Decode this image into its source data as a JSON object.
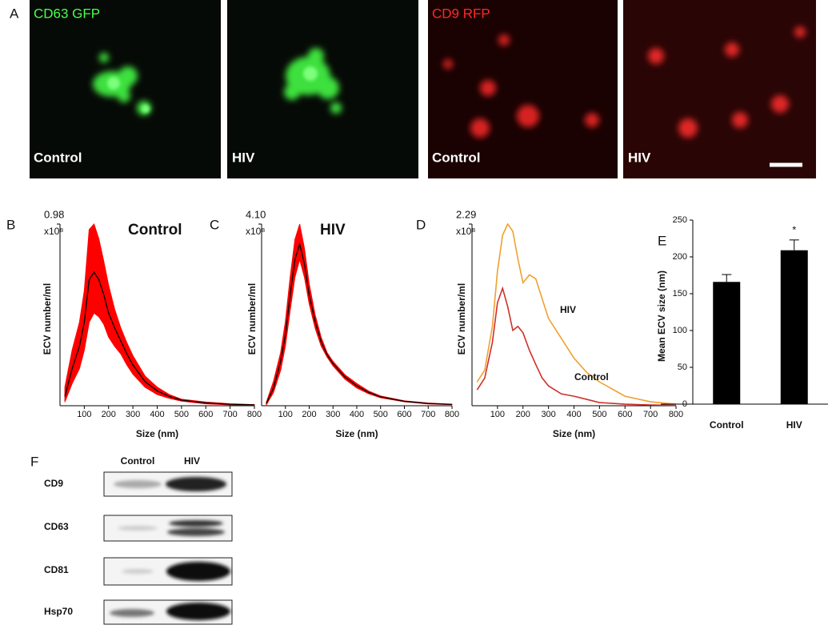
{
  "panel_a": {
    "letter": "A",
    "images": [
      {
        "marker": "CD63 GFP",
        "condition": "Control"
      },
      {
        "condition": "HIV"
      },
      {
        "marker": "CD9 RFP",
        "condition": "Control"
      },
      {
        "condition": "HIV"
      }
    ]
  },
  "chart_data": [
    {
      "type": "line",
      "letter": "B",
      "title": "Control",
      "xlabel": "Size (nm)",
      "ylabel": "ECV number/ml",
      "y_unit": "x10⁸",
      "x": [
        20,
        50,
        80,
        100,
        120,
        140,
        160,
        180,
        200,
        225,
        250,
        275,
        300,
        350,
        400,
        450,
        500,
        600,
        700,
        800
      ],
      "values": [
        0.05,
        0.2,
        0.32,
        0.45,
        0.68,
        0.72,
        0.68,
        0.6,
        0.5,
        0.42,
        0.35,
        0.28,
        0.22,
        0.13,
        0.08,
        0.05,
        0.03,
        0.015,
        0.008,
        0.005
      ],
      "upper": [
        0.1,
        0.3,
        0.45,
        0.62,
        0.95,
        0.98,
        0.9,
        0.78,
        0.65,
        0.52,
        0.42,
        0.34,
        0.27,
        0.16,
        0.1,
        0.06,
        0.035,
        0.02,
        0.01,
        0.006
      ],
      "lower": [
        0.02,
        0.12,
        0.2,
        0.3,
        0.45,
        0.5,
        0.48,
        0.44,
        0.37,
        0.32,
        0.28,
        0.22,
        0.17,
        0.1,
        0.06,
        0.04,
        0.025,
        0.01,
        0.005,
        0.003
      ],
      "color": "#000000",
      "band_color": "#ff0000",
      "xlim": [
        0,
        800
      ],
      "xticks": [
        100,
        200,
        300,
        400,
        500,
        600,
        700,
        800
      ],
      "ylim": [
        0,
        0.98
      ],
      "yticks": [
        0.98
      ]
    },
    {
      "type": "line",
      "letter": "C",
      "title": "HIV",
      "xlabel": "Size (nm)",
      "ylabel": "ECV number/ml",
      "y_unit": "x10⁸",
      "x": [
        20,
        50,
        80,
        100,
        120,
        140,
        160,
        180,
        200,
        225,
        250,
        275,
        300,
        350,
        400,
        450,
        500,
        600,
        700,
        800
      ],
      "values": [
        0.05,
        0.4,
        1.0,
        1.6,
        2.5,
        3.3,
        3.65,
        3.2,
        2.5,
        1.9,
        1.45,
        1.15,
        0.95,
        0.65,
        0.45,
        0.3,
        0.2,
        0.1,
        0.05,
        0.03
      ],
      "upper": [
        0.08,
        0.55,
        1.2,
        1.9,
        2.9,
        3.75,
        4.1,
        3.55,
        2.75,
        2.05,
        1.55,
        1.2,
        1.0,
        0.7,
        0.5,
        0.33,
        0.22,
        0.11,
        0.06,
        0.035
      ],
      "lower": [
        0.02,
        0.3,
        0.8,
        1.35,
        2.15,
        2.9,
        3.3,
        2.9,
        2.3,
        1.75,
        1.35,
        1.1,
        0.9,
        0.6,
        0.4,
        0.27,
        0.18,
        0.09,
        0.04,
        0.025
      ],
      "color": "#000000",
      "band_color": "#ff0000",
      "xlim": [
        0,
        800
      ],
      "xticks": [
        100,
        200,
        300,
        400,
        500,
        600,
        700,
        800
      ],
      "ylim": [
        0,
        4.1
      ],
      "yticks": [
        {
          "value": 4.1,
          "label": "4.10"
        }
      ]
    },
    {
      "type": "multiline",
      "letter": "D",
      "xlabel": "Size (nm)",
      "ylabel": "ECV number/ml",
      "y_unit": "x10⁸",
      "x": [
        20,
        50,
        80,
        100,
        120,
        140,
        160,
        180,
        200,
        225,
        250,
        275,
        300,
        350,
        400,
        450,
        500,
        600,
        700,
        800
      ],
      "series": [
        {
          "name": "HIV",
          "color": "#f0a030",
          "values": [
            0.3,
            0.45,
            1.0,
            1.7,
            2.15,
            2.29,
            2.2,
            1.85,
            1.55,
            1.65,
            1.6,
            1.35,
            1.1,
            0.85,
            0.6,
            0.42,
            0.3,
            0.12,
            0.05,
            0.02
          ]
        },
        {
          "name": "Control",
          "color": "#d03028",
          "values": [
            0.2,
            0.35,
            0.8,
            1.3,
            1.48,
            1.25,
            0.95,
            1.0,
            0.92,
            0.7,
            0.52,
            0.35,
            0.25,
            0.15,
            0.12,
            0.08,
            0.04,
            0.02,
            0.01,
            0.005
          ]
        }
      ],
      "xlim": [
        0,
        800
      ],
      "xticks": [
        100,
        200,
        300,
        400,
        500,
        600,
        700,
        800
      ],
      "ylim": [
        0,
        2.29
      ],
      "yticks": [
        2.29
      ]
    },
    {
      "type": "bar",
      "letter": "E",
      "ylabel": "Mean ECV size (nm)",
      "categories": [
        "Control",
        "HIV"
      ],
      "values": [
        166,
        209
      ],
      "errors": [
        10,
        14
      ],
      "annotations": [
        "*"
      ],
      "annotation_index": 1,
      "color": "#000000",
      "ylim": [
        0,
        250
      ],
      "yticks": [
        0,
        50,
        100,
        150,
        200,
        250
      ]
    }
  ],
  "panel_f": {
    "letter": "F",
    "columns": [
      "Control",
      "HIV"
    ],
    "rows": [
      "CD9",
      "CD63",
      "CD81",
      "Hsp70"
    ]
  }
}
